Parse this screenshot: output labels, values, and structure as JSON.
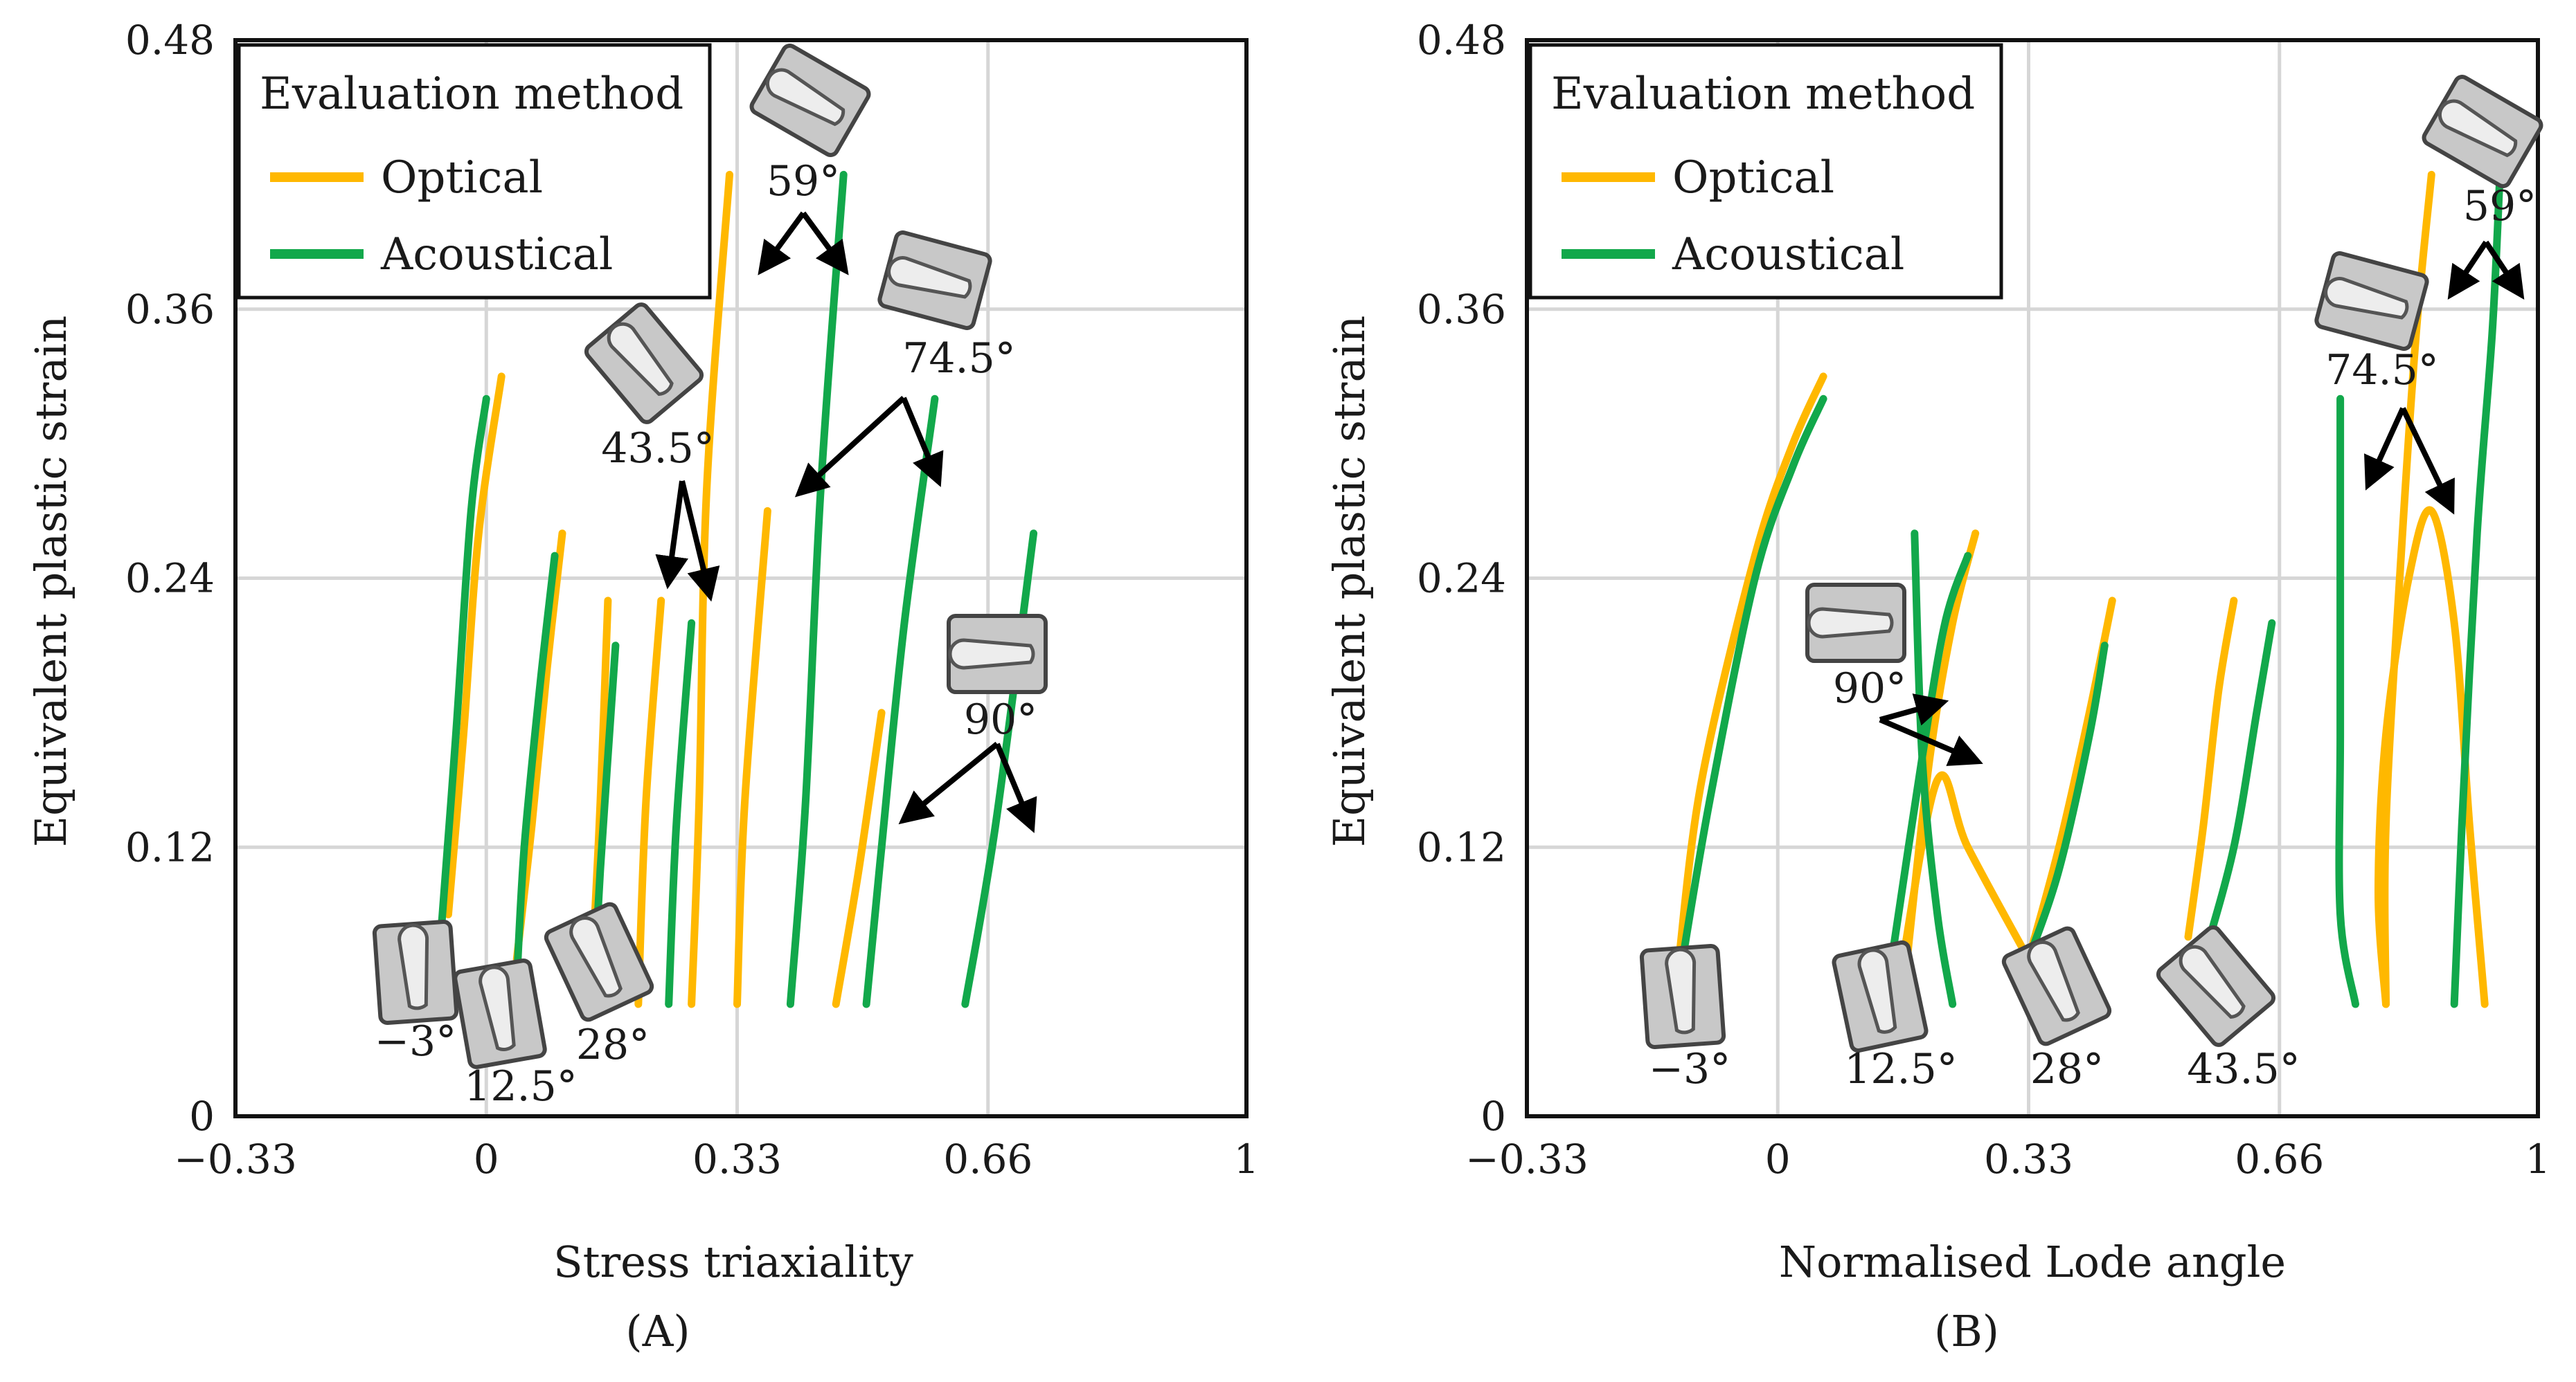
{
  "colors": {
    "optical": "#FFB800",
    "acoustical": "#12A84B",
    "grid": "#d6d6d6",
    "arrow": "#000000",
    "specimen_fill": "#c8c8c8"
  },
  "chart_data": [
    {
      "type": "line",
      "panel_label": "(A)",
      "xlabel": "Stress triaxiality",
      "ylabel": "Equivalent plastic strain",
      "xlim": [
        -0.33,
        1
      ],
      "ylim": [
        0,
        0.48
      ],
      "x_ticks": [
        -0.33,
        0,
        0.33,
        0.66,
        1
      ],
      "x_tick_labels": [
        "−0.33",
        "0",
        "0.33",
        "0.66",
        "1"
      ],
      "y_ticks": [
        0,
        0.12,
        0.24,
        0.36,
        0.48
      ],
      "y_tick_labels": [
        "0",
        "0.12",
        "0.24",
        "0.36",
        "0.48"
      ],
      "grid": true,
      "legend": {
        "title": "Evaluation method",
        "position": "top-left",
        "entries": [
          "Optical",
          "Acoustical"
        ]
      },
      "series": [
        {
          "method": "Optical",
          "specimen": "-3",
          "points": [
            [
              -0.05,
              0.09
            ],
            [
              -0.03,
              0.17
            ],
            [
              -0.01,
              0.26
            ],
            [
              0.02,
              0.33
            ]
          ]
        },
        {
          "method": "Acoustical",
          "specimen": "-3",
          "points": [
            [
              -0.06,
              0.08
            ],
            [
              -0.04,
              0.17
            ],
            [
              -0.02,
              0.27
            ],
            [
              0.0,
              0.32
            ]
          ]
        },
        {
          "method": "Optical",
          "specimen": "12.5",
          "points": [
            [
              0.04,
              0.07
            ],
            [
              0.06,
              0.13
            ],
            [
              0.08,
              0.2
            ],
            [
              0.1,
              0.26
            ]
          ]
        },
        {
          "method": "Acoustical",
          "specimen": "12.5",
          "points": [
            [
              0.04,
              0.06
            ],
            [
              0.05,
              0.12
            ],
            [
              0.07,
              0.19
            ],
            [
              0.09,
              0.25
            ]
          ]
        },
        {
          "method": "Optical",
          "specimen": "28",
          "points": [
            [
              0.14,
              0.07
            ],
            [
              0.15,
              0.14
            ],
            [
              0.16,
              0.23
            ]
          ]
        },
        {
          "method": "Acoustical",
          "specimen": "28",
          "points": [
            [
              0.14,
              0.05
            ],
            [
              0.15,
              0.11
            ],
            [
              0.17,
              0.21
            ]
          ]
        },
        {
          "method": "Optical",
          "specimen": "43.5",
          "points": [
            [
              0.2,
              0.05
            ],
            [
              0.21,
              0.14
            ],
            [
              0.23,
              0.23
            ]
          ]
        },
        {
          "method": "Acoustical",
          "specimen": "43.5",
          "points": [
            [
              0.24,
              0.05
            ],
            [
              0.25,
              0.13
            ],
            [
              0.27,
              0.22
            ]
          ]
        },
        {
          "method": "Optical",
          "specimen": "59",
          "points": [
            [
              0.27,
              0.05
            ],
            [
              0.28,
              0.14
            ],
            [
              0.29,
              0.28
            ],
            [
              0.32,
              0.42
            ]
          ]
        },
        {
          "method": "Acoustical",
          "specimen": "59",
          "points": [
            [
              0.4,
              0.05
            ],
            [
              0.42,
              0.14
            ],
            [
              0.44,
              0.28
            ],
            [
              0.47,
              0.42
            ]
          ]
        },
        {
          "method": "Optical",
          "specimen": "74.5",
          "points": [
            [
              0.33,
              0.05
            ],
            [
              0.34,
              0.14
            ],
            [
              0.37,
              0.27
            ]
          ]
        },
        {
          "method": "Acoustical",
          "specimen": "74.5",
          "points": [
            [
              0.5,
              0.05
            ],
            [
              0.52,
              0.12
            ],
            [
              0.55,
              0.22
            ],
            [
              0.59,
              0.32
            ]
          ]
        },
        {
          "method": "Optical",
          "specimen": "90",
          "points": [
            [
              0.46,
              0.05
            ],
            [
              0.49,
              0.11
            ],
            [
              0.52,
              0.18
            ]
          ]
        },
        {
          "method": "Acoustical",
          "specimen": "90",
          "points": [
            [
              0.63,
              0.05
            ],
            [
              0.67,
              0.13
            ],
            [
              0.72,
              0.26
            ]
          ]
        }
      ],
      "annotations": [
        "−3°",
        "12.5°",
        "28°",
        "43.5°",
        "59°",
        "74.5°",
        "90°"
      ]
    },
    {
      "type": "line",
      "panel_label": "(B)",
      "xlabel": "Normalised Lode angle",
      "ylabel": "Equivalent plastic strain",
      "xlim": [
        -0.33,
        1
      ],
      "ylim": [
        0,
        0.48
      ],
      "x_ticks": [
        -0.33,
        0,
        0.33,
        0.66,
        1
      ],
      "x_tick_labels": [
        "−0.33",
        "0",
        "0.33",
        "0.66",
        "1"
      ],
      "y_ticks": [
        0,
        0.12,
        0.24,
        0.36,
        0.48
      ],
      "y_tick_labels": [
        "0",
        "0.12",
        "0.24",
        "0.36",
        "0.48"
      ],
      "grid": true,
      "legend": {
        "title": "Evaluation method",
        "position": "top-left",
        "entries": [
          "Optical",
          "Acoustical"
        ]
      },
      "series": [
        {
          "method": "Optical",
          "specimen": "-3",
          "points": [
            [
              -0.13,
              0.07
            ],
            [
              -0.1,
              0.15
            ],
            [
              -0.03,
              0.25
            ],
            [
              0.02,
              0.3
            ],
            [
              0.06,
              0.33
            ]
          ]
        },
        {
          "method": "Acoustical",
          "specimen": "-3",
          "points": [
            [
              -0.13,
              0.06
            ],
            [
              -0.09,
              0.14
            ],
            [
              -0.03,
              0.24
            ],
            [
              0.02,
              0.29
            ],
            [
              0.06,
              0.32
            ]
          ]
        },
        {
          "method": "Optical",
          "specimen": "12.5",
          "points": [
            [
              0.17,
              0.07
            ],
            [
              0.2,
              0.16
            ],
            [
              0.23,
              0.22
            ],
            [
              0.26,
              0.26
            ]
          ]
        },
        {
          "method": "Acoustical",
          "specimen": "12.5",
          "points": [
            [
              0.15,
              0.07
            ],
            [
              0.19,
              0.16
            ],
            [
              0.22,
              0.22
            ],
            [
              0.25,
              0.25
            ]
          ]
        },
        {
          "method": "Optical",
          "specimen": "90",
          "points": [
            [
              0.16,
              0.06
            ],
            [
              0.21,
              0.15
            ],
            [
              0.25,
              0.12
            ],
            [
              0.33,
              0.07
            ]
          ]
        },
        {
          "method": "Acoustical",
          "specimen": "90",
          "points": [
            [
              0.18,
              0.26
            ],
            [
              0.19,
              0.16
            ],
            [
              0.21,
              0.09
            ],
            [
              0.23,
              0.05
            ]
          ]
        },
        {
          "method": "Optical",
          "specimen": "28",
          "points": [
            [
              0.33,
              0.07
            ],
            [
              0.37,
              0.12
            ],
            [
              0.41,
              0.18
            ],
            [
              0.44,
              0.23
            ]
          ]
        },
        {
          "method": "Acoustical",
          "specimen": "28",
          "points": [
            [
              0.33,
              0.07
            ],
            [
              0.37,
              0.11
            ],
            [
              0.41,
              0.17
            ],
            [
              0.43,
              0.21
            ]
          ]
        },
        {
          "method": "Optical",
          "specimen": "43.5",
          "points": [
            [
              0.54,
              0.08
            ],
            [
              0.56,
              0.13
            ],
            [
              0.58,
              0.19
            ],
            [
              0.6,
              0.23
            ]
          ]
        },
        {
          "method": "Acoustical",
          "specimen": "43.5",
          "points": [
            [
              0.56,
              0.07
            ],
            [
              0.6,
              0.12
            ],
            [
              0.63,
              0.18
            ],
            [
              0.65,
              0.22
            ]
          ]
        },
        {
          "method": "Optical",
          "specimen": "74.5",
          "points": [
            [
              0.8,
              0.05
            ],
            [
              0.79,
              0.1
            ],
            [
              0.8,
              0.17
            ],
            [
              0.83,
              0.24
            ],
            [
              0.86,
              0.27
            ],
            [
              0.89,
              0.22
            ],
            [
              0.91,
              0.13
            ],
            [
              0.93,
              0.05
            ]
          ]
        },
        {
          "method": "Acoustical",
          "specimen": "74.5",
          "points": [
            [
              0.76,
              0.05
            ],
            [
              0.74,
              0.09
            ],
            [
              0.74,
              0.17
            ],
            [
              0.74,
              0.26
            ],
            [
              0.74,
              0.32
            ]
          ]
        },
        {
          "method": "Optical",
          "specimen": "59",
          "points": [
            [
              0.8,
              0.05
            ],
            [
              0.8,
              0.13
            ],
            [
              0.82,
              0.25
            ],
            [
              0.84,
              0.35
            ],
            [
              0.86,
              0.42
            ]
          ]
        },
        {
          "method": "Acoustical",
          "specimen": "59",
          "points": [
            [
              0.89,
              0.05
            ],
            [
              0.9,
              0.13
            ],
            [
              0.92,
              0.26
            ],
            [
              0.94,
              0.35
            ],
            [
              0.95,
              0.42
            ]
          ]
        }
      ],
      "annotations": [
        "−3°",
        "12.5°",
        "28°",
        "43.5°",
        "59°",
        "74.5°",
        "90°"
      ]
    }
  ]
}
